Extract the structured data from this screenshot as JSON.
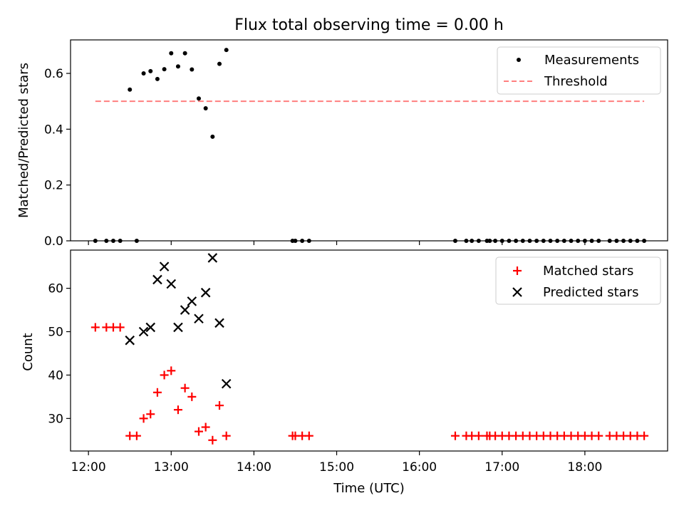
{
  "figure": {
    "title": "Flux total observing time = 0.00 h"
  },
  "chart_data": [
    {
      "type": "scatter",
      "panel": "top",
      "ylabel": "Matched/Predicted stars",
      "xlim": [
        "11:47",
        "19:00"
      ],
      "ylim": [
        0,
        0.72
      ],
      "yticks": [
        0.0,
        0.2,
        0.4,
        0.6
      ],
      "ytick_labels": [
        "0.0",
        "0.2",
        "0.4",
        "0.6"
      ],
      "legend_position": "top-right",
      "grid": false,
      "series": [
        {
          "name": "Measurements",
          "marker": "dot",
          "color": "#000000",
          "points": [
            [
              "12:05",
              0.0
            ],
            [
              "12:13",
              0.0
            ],
            [
              "12:18",
              0.0
            ],
            [
              "12:23",
              0.0
            ],
            [
              "12:30",
              0.542
            ],
            [
              "12:35",
              0.0
            ],
            [
              "12:40",
              0.6
            ],
            [
              "12:45",
              0.608
            ],
            [
              "12:50",
              0.58
            ],
            [
              "12:55",
              0.615
            ],
            [
              "13:00",
              0.672
            ],
            [
              "13:05",
              0.625
            ],
            [
              "13:10",
              0.672
            ],
            [
              "13:15",
              0.614
            ],
            [
              "13:20",
              0.51
            ],
            [
              "13:25",
              0.475
            ],
            [
              "13:30",
              0.373
            ],
            [
              "13:35",
              0.634
            ],
            [
              "13:40",
              0.684
            ],
            [
              "14:28",
              0.0
            ],
            [
              "14:30",
              0.0
            ],
            [
              "14:35",
              0.0
            ],
            [
              "14:40",
              0.0
            ],
            [
              "16:26",
              0.0
            ],
            [
              "16:34",
              0.0
            ],
            [
              "16:38",
              0.0
            ],
            [
              "16:43",
              0.0
            ],
            [
              "16:49",
              0.0
            ],
            [
              "16:51",
              0.0
            ],
            [
              "16:55",
              0.0
            ],
            [
              "17:00",
              0.0
            ],
            [
              "17:05",
              0.0
            ],
            [
              "17:10",
              0.0
            ],
            [
              "17:15",
              0.0
            ],
            [
              "17:20",
              0.0
            ],
            [
              "17:25",
              0.0
            ],
            [
              "17:30",
              0.0
            ],
            [
              "17:35",
              0.0
            ],
            [
              "17:40",
              0.0
            ],
            [
              "17:45",
              0.0
            ],
            [
              "17:50",
              0.0
            ],
            [
              "17:55",
              0.0
            ],
            [
              "18:00",
              0.0
            ],
            [
              "18:05",
              0.0
            ],
            [
              "18:10",
              0.0
            ],
            [
              "18:18",
              0.0
            ],
            [
              "18:23",
              0.0
            ],
            [
              "18:28",
              0.0
            ],
            [
              "18:33",
              0.0
            ],
            [
              "18:38",
              0.0
            ],
            [
              "18:43",
              0.0
            ]
          ]
        },
        {
          "name": "Threshold",
          "line": "dashed",
          "color": "#ff7f7f",
          "points": [
            [
              "12:05",
              0.5
            ],
            [
              "18:43",
              0.5
            ]
          ]
        }
      ]
    },
    {
      "type": "scatter",
      "panel": "bottom",
      "xlabel": "Time (UTC)",
      "ylabel": "Count",
      "xlim": [
        "11:47",
        "19:00"
      ],
      "ylim": [
        22.5,
        68.8
      ],
      "xticks": [
        "12:00",
        "13:00",
        "14:00",
        "15:00",
        "16:00",
        "17:00",
        "18:00"
      ],
      "yticks": [
        30,
        40,
        50,
        60
      ],
      "ytick_labels": [
        "30",
        "40",
        "50",
        "60"
      ],
      "legend_position": "top-right",
      "grid": false,
      "series": [
        {
          "name": "Matched stars",
          "marker": "plus",
          "color": "#ff0000",
          "points": [
            [
              "12:05",
              51
            ],
            [
              "12:13",
              51
            ],
            [
              "12:18",
              51
            ],
            [
              "12:23",
              51
            ],
            [
              "12:30",
              26
            ],
            [
              "12:35",
              26
            ],
            [
              "12:40",
              30
            ],
            [
              "12:45",
              31
            ],
            [
              "12:50",
              36
            ],
            [
              "12:55",
              40
            ],
            [
              "13:00",
              41
            ],
            [
              "13:05",
              32
            ],
            [
              "13:10",
              37
            ],
            [
              "13:15",
              35
            ],
            [
              "13:20",
              27
            ],
            [
              "13:25",
              28
            ],
            [
              "13:30",
              25
            ],
            [
              "13:35",
              33
            ],
            [
              "13:40",
              26
            ],
            [
              "14:28",
              26
            ],
            [
              "14:30",
              26
            ],
            [
              "14:35",
              26
            ],
            [
              "14:40",
              26
            ],
            [
              "16:26",
              26
            ],
            [
              "16:34",
              26
            ],
            [
              "16:38",
              26
            ],
            [
              "16:43",
              26
            ],
            [
              "16:49",
              26
            ],
            [
              "16:51",
              26
            ],
            [
              "16:55",
              26
            ],
            [
              "17:00",
              26
            ],
            [
              "17:05",
              26
            ],
            [
              "17:10",
              26
            ],
            [
              "17:15",
              26
            ],
            [
              "17:20",
              26
            ],
            [
              "17:25",
              26
            ],
            [
              "17:30",
              26
            ],
            [
              "17:35",
              26
            ],
            [
              "17:40",
              26
            ],
            [
              "17:45",
              26
            ],
            [
              "17:50",
              26
            ],
            [
              "17:55",
              26
            ],
            [
              "18:00",
              26
            ],
            [
              "18:05",
              26
            ],
            [
              "18:10",
              26
            ],
            [
              "18:18",
              26
            ],
            [
              "18:23",
              26
            ],
            [
              "18:28",
              26
            ],
            [
              "18:33",
              26
            ],
            [
              "18:38",
              26
            ],
            [
              "18:43",
              26
            ]
          ]
        },
        {
          "name": "Predicted stars",
          "marker": "x",
          "color": "#000000",
          "points": [
            [
              "12:30",
              48
            ],
            [
              "12:40",
              50
            ],
            [
              "12:45",
              51
            ],
            [
              "12:50",
              62
            ],
            [
              "12:55",
              65
            ],
            [
              "13:00",
              61
            ],
            [
              "13:05",
              51
            ],
            [
              "13:10",
              55
            ],
            [
              "13:15",
              57
            ],
            [
              "13:20",
              53
            ],
            [
              "13:25",
              59
            ],
            [
              "13:30",
              67
            ],
            [
              "13:35",
              52
            ],
            [
              "13:40",
              38
            ]
          ]
        }
      ]
    }
  ]
}
